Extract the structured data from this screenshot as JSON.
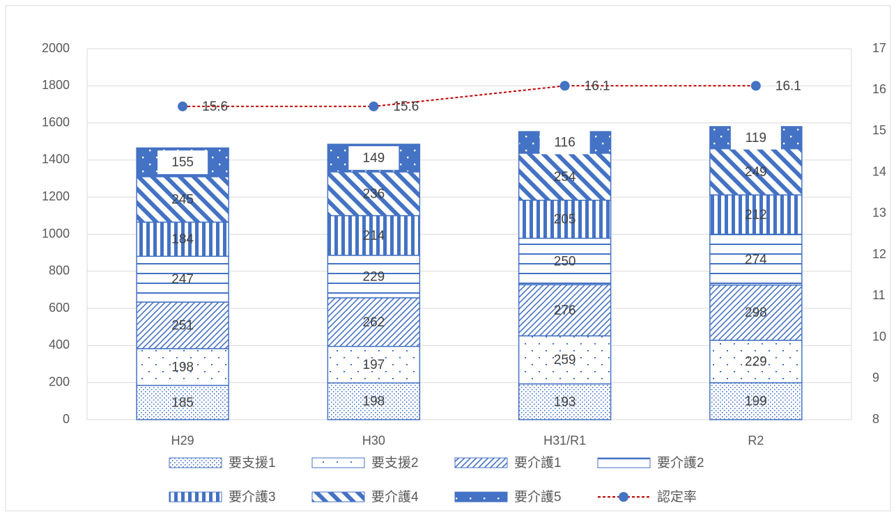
{
  "chart_data": {
    "type": "bar",
    "categories": [
      "H29",
      "H30",
      "H31/R1",
      "R2"
    ],
    "series": [
      {
        "name": "要支援1",
        "color": "#4472c4",
        "values": [
          185,
          198,
          193,
          199
        ]
      },
      {
        "name": "要支援2",
        "color": "#4472c4",
        "values": [
          198,
          197,
          259,
          229
        ]
      },
      {
        "name": "要介護1",
        "color": "#4472c4",
        "values": [
          251,
          262,
          276,
          298
        ]
      },
      {
        "name": "要介護2",
        "color": "#4472c4",
        "values": [
          247,
          229,
          250,
          274
        ]
      },
      {
        "name": "要介護3",
        "color": "#4472c4",
        "values": [
          184,
          214,
          205,
          212
        ]
      },
      {
        "name": "要介護4",
        "color": "#4472c4",
        "values": [
          245,
          236,
          254,
          249
        ]
      },
      {
        "name": "要介護5",
        "color": "#4472c4",
        "values": [
          155,
          149,
          116,
          119
        ]
      },
      {
        "name": "認定率",
        "type": "line",
        "axis": "y2",
        "color": "#c00000",
        "marker_color": "#4472c4",
        "values": [
          15.6,
          15.6,
          16.1,
          16.1
        ]
      }
    ],
    "stacked": true,
    "ylim": [
      0,
      2000
    ],
    "yticks": [
      0,
      200,
      400,
      600,
      800,
      1000,
      1200,
      1400,
      1600,
      1800,
      2000
    ],
    "y2lim": [
      8,
      17
    ],
    "y2ticks": [
      8,
      9,
      10,
      11,
      12,
      13,
      14,
      15,
      16,
      17
    ],
    "grid": true,
    "legend": "bottom"
  }
}
